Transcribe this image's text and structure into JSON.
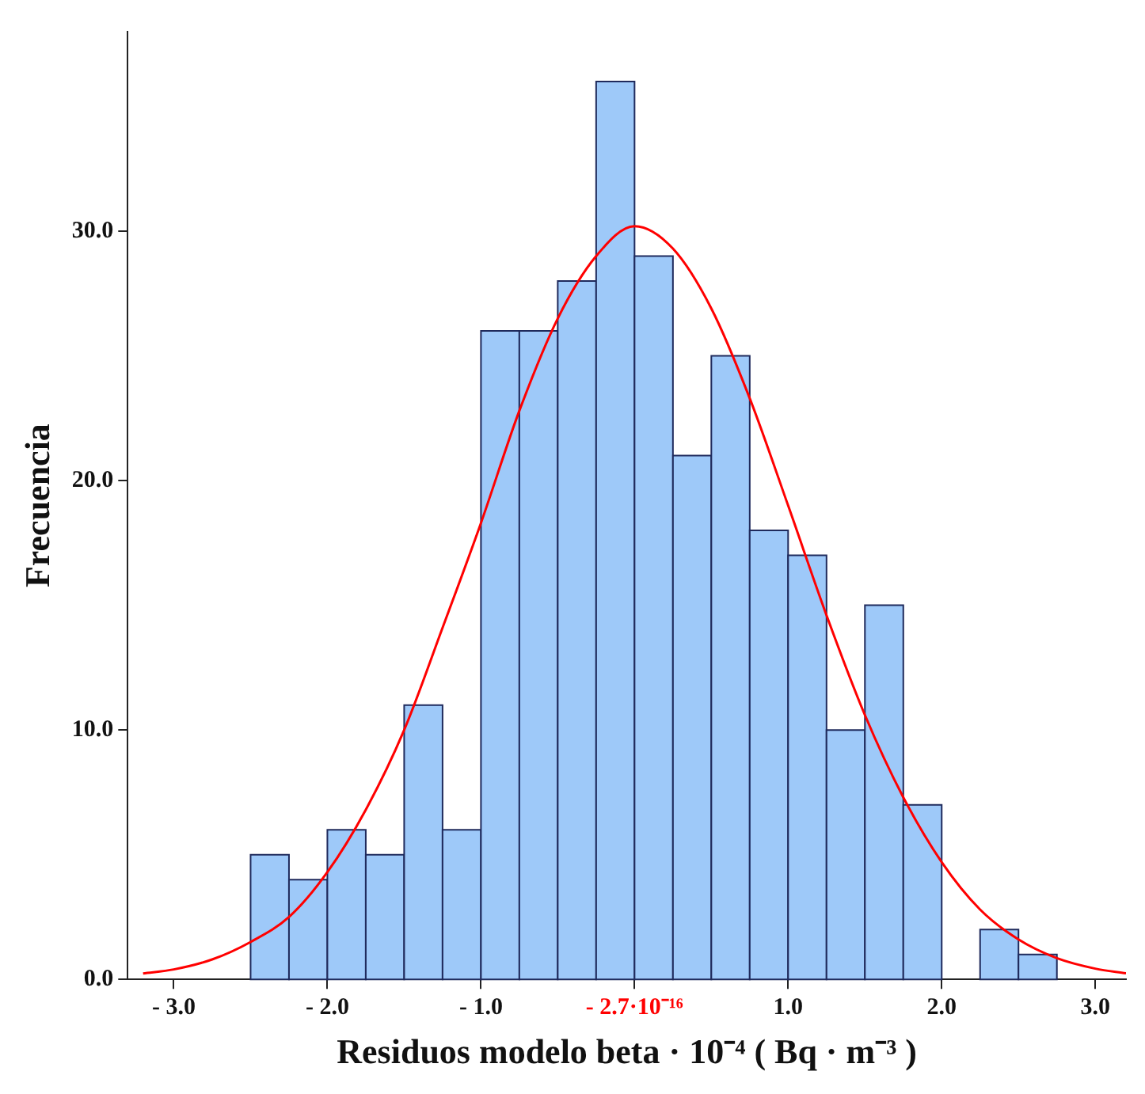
{
  "chart_data": {
    "type": "histogram",
    "xlabel": "Residuos modelo beta · 10⁻⁴ ( Bq · m⁻³ )",
    "ylabel": "Frecuencia",
    "bins": [
      -2.5,
      -2.25,
      -2,
      -1.75,
      -1.5,
      -1.25,
      -1,
      -0.75,
      -0.5,
      -0.25,
      0,
      0.25,
      0.5,
      0.75,
      1,
      1.25,
      1.5,
      1.75,
      2,
      2.25,
      2.5,
      2.75
    ],
    "values": [
      5,
      4,
      6,
      5,
      11,
      6,
      26,
      26,
      28,
      36,
      29,
      21,
      25,
      18,
      17,
      10,
      15,
      7,
      0,
      2,
      1
    ],
    "color": "#9ec9f9",
    "series": [
      {
        "type": "line",
        "color": "#ff0000",
        "x": [
          -3.2,
          -3,
          -2.75,
          -2.5,
          -2.25,
          -2,
          -1.75,
          -1.5,
          -1.25,
          -1,
          -0.75,
          -0.5,
          -0.25,
          0,
          0.25,
          0.5,
          0.75,
          1,
          1.25,
          1.5,
          1.75,
          2,
          2.25,
          2.5,
          2.75,
          3,
          3.2
        ],
        "values": [
          0.24,
          0.4,
          0.8,
          1.5,
          2.5,
          4.3,
          6.8,
          10,
          14.1,
          18.3,
          22.8,
          26.5,
          29,
          30.2,
          29.3,
          26.9,
          23.3,
          19,
          14.6,
          10.6,
          7.3,
          4.7,
          2.8,
          1.6,
          0.85,
          0.43,
          0.24
        ]
      }
    ],
    "xlim": [
      -3.3,
      3.2
    ],
    "xticks": [
      {
        "value": -3,
        "label": "- 3.0"
      },
      {
        "value": -2,
        "label": "- 2.0"
      },
      {
        "value": -1,
        "label": "- 1.0"
      },
      {
        "value": 0,
        "label": "- 2.7·10⁻¹⁶"
      },
      {
        "value": 1,
        "label": "1.0"
      },
      {
        "value": 2,
        "label": "2.0"
      },
      {
        "value": 3,
        "label": "3.0"
      }
    ],
    "ylim": [
      0,
      38
    ],
    "yticks": [
      {
        "value": 0,
        "label": "0.0"
      },
      {
        "value": 10,
        "label": "10.0"
      },
      {
        "value": 20,
        "label": "20.0"
      },
      {
        "value": 30,
        "label": "30.0"
      }
    ],
    "grid": false,
    "legend": false,
    "marker": "none"
  }
}
